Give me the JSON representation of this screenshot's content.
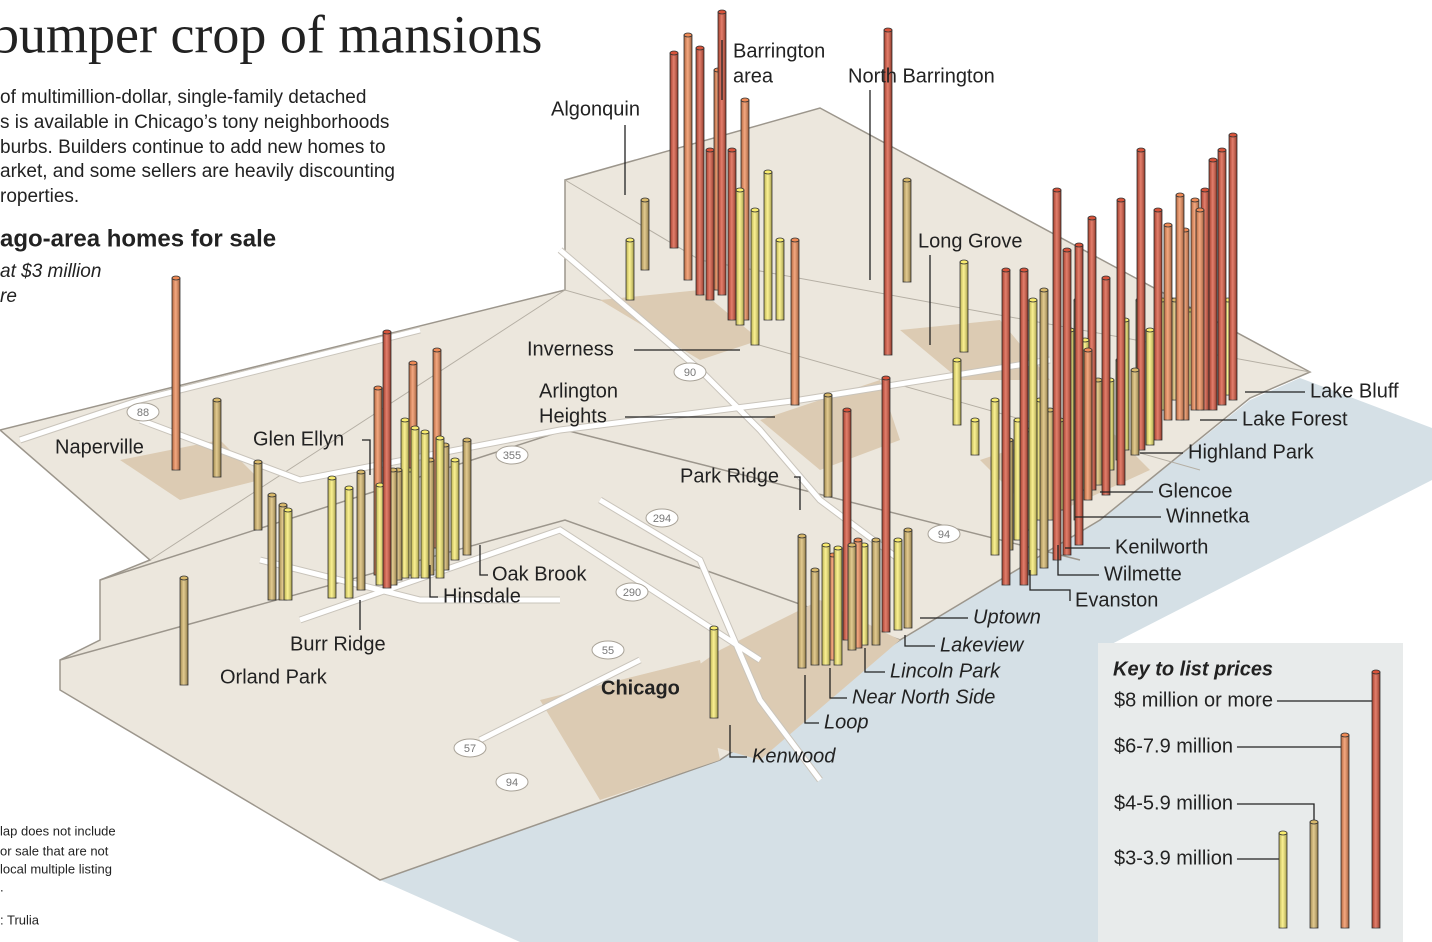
{
  "header": {
    "title": "bumper crop of mansions",
    "intro": [
      "of multimillion-dollar, single-family detached",
      "s is available in Chicago’s tony neighborhoods",
      "burbs. Builders continue to add new homes to",
      "arket, and some sellers are heavily discounting",
      "roperties."
    ],
    "chart_title": "ago-area homes for sale",
    "chart_subtitle": [
      "at $3 million",
      "re"
    ]
  },
  "places": [
    {
      "name": [
        "Algonquin"
      ]
    },
    {
      "name": [
        "Barrington",
        "area"
      ]
    },
    {
      "name": [
        "North Barrington"
      ]
    },
    {
      "name": [
        "Long Grove"
      ]
    },
    {
      "name": [
        "Inverness"
      ]
    },
    {
      "name": [
        "Arlington",
        "Heights"
      ]
    },
    {
      "name": [
        "Naperville"
      ]
    },
    {
      "name": [
        "Glen Ellyn"
      ]
    },
    {
      "name": [
        "Park Ridge"
      ]
    },
    {
      "name": [
        "Oak Brook"
      ]
    },
    {
      "name": [
        "Hinsdale"
      ]
    },
    {
      "name": [
        "Burr Ridge"
      ]
    },
    {
      "name": [
        "Orland Park"
      ]
    },
    {
      "name": [
        "Chicago"
      ]
    },
    {
      "name": [
        "Lake Bluff"
      ]
    },
    {
      "name": [
        "Lake Forest"
      ]
    },
    {
      "name": [
        "Highland Park"
      ]
    },
    {
      "name": [
        "Glencoe"
      ]
    },
    {
      "name": [
        "Winnetka"
      ]
    },
    {
      "name": [
        "Kenilworth"
      ]
    },
    {
      "name": [
        "Wilmette"
      ]
    },
    {
      "name": [
        "Evanston"
      ]
    },
    {
      "name": [
        "Uptown"
      ]
    },
    {
      "name": [
        "Lakeview"
      ]
    },
    {
      "name": [
        "Lincoln Park"
      ]
    },
    {
      "name": [
        "Near North Side"
      ]
    },
    {
      "name": [
        "Loop"
      ]
    },
    {
      "name": [
        "Kenwood"
      ]
    }
  ],
  "highways": [
    "88",
    "90",
    "355",
    "294",
    "290",
    "55",
    "57",
    "94",
    "94"
  ],
  "key": {
    "title": "Key to list prices",
    "items": [
      {
        "label": "$8 million or more",
        "color": "#d9533a"
      },
      {
        "label": "$6-7.9 million",
        "color": "#ef8a55"
      },
      {
        "label": "$4-5.9 million",
        "color": "#d8b86a"
      },
      {
        "label": "$3-3.9 million",
        "color": "#f9ec6e"
      }
    ]
  },
  "note": [
    "lap does not include",
    "or sale that are not",
    "local multiple listing",
    "."
  ],
  "source": ": Trulia"
}
